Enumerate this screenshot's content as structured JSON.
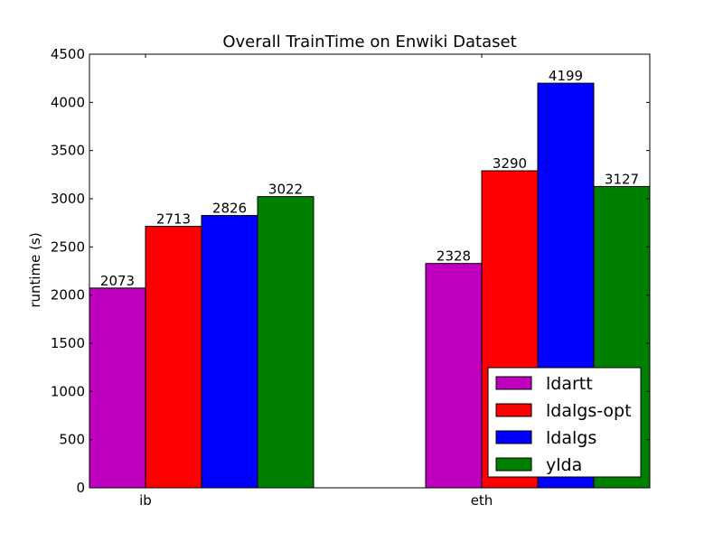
{
  "chart_data": {
    "type": "bar",
    "title": "Overall TrainTime on Enwiki Dataset",
    "xlabel": "",
    "ylabel": "runtime (s)",
    "categories": [
      "ib",
      "eth"
    ],
    "series": [
      {
        "name": "ldartt",
        "color": "#bf00bf",
        "values": [
          2073,
          2328
        ]
      },
      {
        "name": "ldalgs-opt",
        "color": "#ff0000",
        "values": [
          2713,
          3290
        ]
      },
      {
        "name": "ldalgs",
        "color": "#0000ff",
        "values": [
          2826,
          4199
        ]
      },
      {
        "name": "ylda",
        "color": "#008000",
        "values": [
          3022,
          3127
        ]
      }
    ],
    "ylim": [
      0,
      4500
    ],
    "yticks": [
      0,
      500,
      1000,
      1500,
      2000,
      2500,
      3000,
      3500,
      4000,
      4500
    ],
    "grid": false,
    "legend_position": "lower-right",
    "data_labels": true
  }
}
